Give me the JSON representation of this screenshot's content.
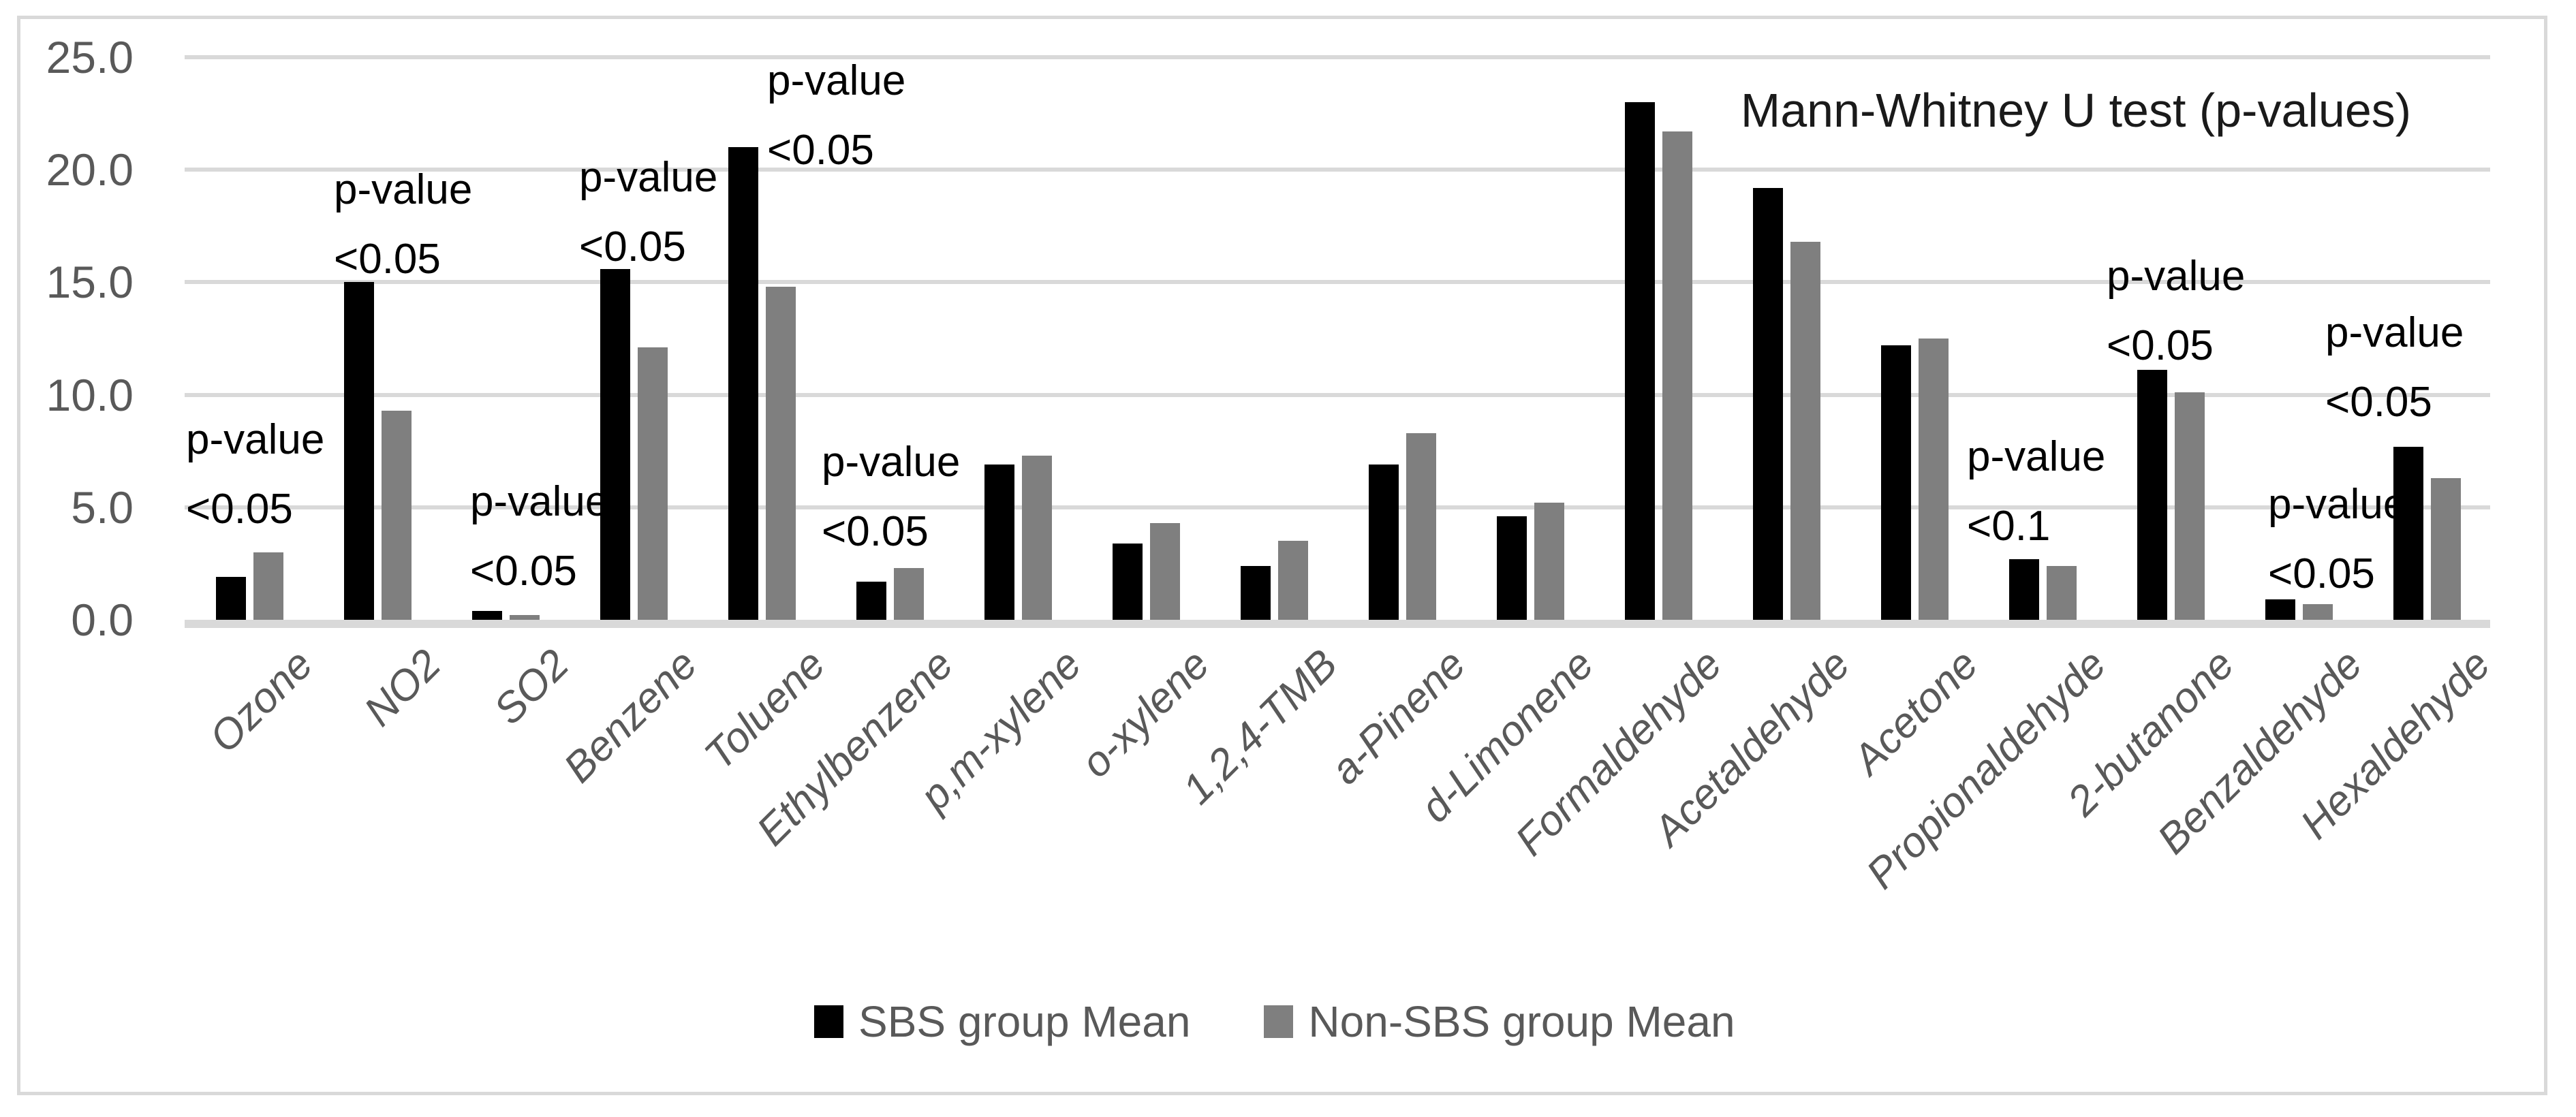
{
  "figure": {
    "title": "Mann-Whitney U test (p-values)"
  },
  "colors": {
    "sbs_bar": "#000000",
    "nonsbs_bar": "#7f7f7f",
    "gridline": "#d9d9d9",
    "axis_text": "#595959",
    "annotation_text": "#000000",
    "title_text": "#1a1a1a",
    "figure_border": "#d9d9d9",
    "background": "#ffffff"
  },
  "y_axis": {
    "tick_labels": [
      "25.0",
      "20.0",
      "15.0",
      "10.0",
      "5.0",
      "0.0"
    ],
    "min": 0,
    "max": 25,
    "step": 5
  },
  "chart_data": {
    "type": "bar",
    "title": "Mann-Whitney U test (p-values)",
    "categories": [
      "Ozone",
      "NO2",
      "SO2",
      "Benzene",
      "Toluene",
      "Ethylbenzene",
      "p,m-xylene",
      "o-xylene",
      "1,2,4-TMB",
      "a-Pinene",
      "d-Limonene",
      "Formaldehyde",
      "Acetaldehyde",
      "Acetone",
      "Propionaldehyde",
      "2-butanone",
      "Benzaldehyde",
      "Hexaldehyde"
    ],
    "series": [
      {
        "name": "SBS group Mean",
        "color": "#000000",
        "values": [
          1.9,
          15.0,
          0.4,
          15.6,
          21.0,
          1.7,
          6.9,
          3.4,
          2.4,
          6.9,
          4.6,
          23.0,
          19.2,
          12.2,
          2.7,
          11.1,
          0.9,
          7.7
        ]
      },
      {
        "name": "Non-SBS group Mean",
        "color": "#7f7f7f",
        "values": [
          3.0,
          9.3,
          0.2,
          12.1,
          14.8,
          2.3,
          7.3,
          4.3,
          3.5,
          8.3,
          5.2,
          21.7,
          16.8,
          12.5,
          2.4,
          10.1,
          0.7,
          6.3
        ]
      }
    ],
    "xlabel": "",
    "ylabel": "",
    "ylim": [
      0,
      25
    ],
    "grid": true,
    "legend_position": "bottom",
    "annotations": [
      {
        "category": "Ozone",
        "lines": [
          "p-value",
          "<0.05"
        ]
      },
      {
        "category": "NO2",
        "lines": [
          "p-value",
          "<0.05"
        ]
      },
      {
        "category": "SO2",
        "lines": [
          "p-value",
          "<0.05"
        ]
      },
      {
        "category": "Benzene",
        "lines": [
          "p-value",
          "<0.05"
        ]
      },
      {
        "category": "Toluene",
        "lines": [
          "p-value",
          "<0.05"
        ]
      },
      {
        "category": "Ethylbenzene",
        "lines": [
          "p-value",
          "<0.05"
        ]
      },
      {
        "category": "Propionaldehyde",
        "lines": [
          "p-value",
          "<0.1"
        ]
      },
      {
        "category": "2-butanone",
        "lines": [
          "p-value",
          "<0.05"
        ]
      },
      {
        "category": "Benzaldehyde",
        "lines": [
          "p-value",
          "<0.05"
        ]
      },
      {
        "category": "Hexaldehyde",
        "lines": [
          "p-value",
          "<0.05"
        ]
      }
    ]
  }
}
